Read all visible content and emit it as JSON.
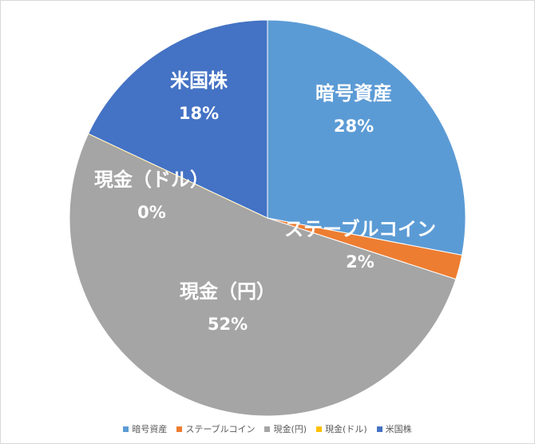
{
  "chart_data": {
    "type": "pie",
    "title": "",
    "categories": [
      "暗号資産",
      "ステーブルコイン",
      "現金（円）",
      "現金（ドル）",
      "米国株"
    ],
    "values": [
      28,
      2,
      52,
      0,
      18
    ],
    "value_labels": [
      "28%",
      "2%",
      "52%",
      "0%",
      "18%"
    ],
    "colors": [
      "#5B9BD5",
      "#ED7D31",
      "#A5A5A5",
      "#FFC000",
      "#4472C4"
    ],
    "legend_labels": [
      "暗号資産",
      "ステーブルコイン",
      "現金(円)",
      "現金(ドル)",
      "米国株"
    ],
    "legend_position": "bottom"
  }
}
